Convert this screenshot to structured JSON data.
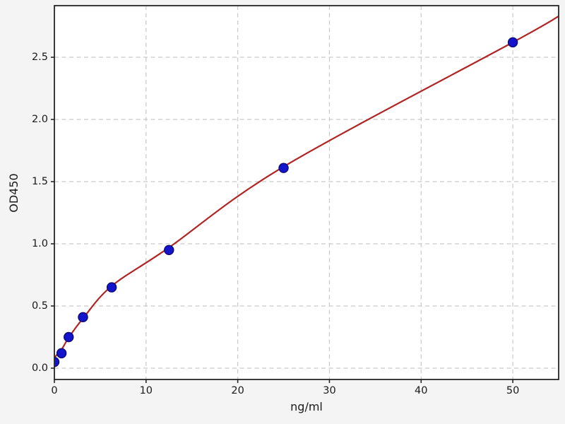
{
  "chart_data": {
    "type": "scatter",
    "title": "",
    "xlabel": "ng/ml",
    "ylabel": "OD450",
    "xlim": [
      0,
      55
    ],
    "ylim": [
      -0.091,
      2.915
    ],
    "x_ticks": [
      0,
      10,
      20,
      30,
      40,
      50
    ],
    "y_ticks": [
      0.0,
      0.5,
      1.0,
      1.5,
      2.0,
      2.5
    ],
    "grid": true,
    "legend": null,
    "series": [
      {
        "name": "standard-points",
        "kind": "scatter",
        "x": [
          0,
          0.78,
          1.56,
          3.12,
          6.25,
          12.5,
          25,
          50
        ],
        "y": [
          0.05,
          0.12,
          0.25,
          0.41,
          0.65,
          0.95,
          1.61,
          2.62
        ],
        "marker_color": "#1414cc",
        "marker_edge_color": "#0a0a78",
        "marker_radius": 6.5
      },
      {
        "name": "fit-curve",
        "kind": "line",
        "x": [
          0,
          0.78,
          1.56,
          3.12,
          6.25,
          12.5,
          25,
          50,
          55
        ],
        "y": [
          0.085,
          0.15,
          0.245,
          0.4,
          0.66,
          0.97,
          1.62,
          2.62,
          2.83
        ],
        "color": "#b22525",
        "width": 2.2
      }
    ],
    "colors": {
      "figure_background": "#f4f4f4",
      "plot_background": "#ffffff",
      "grid": "#c9c9c9",
      "spine": "#262626",
      "text": "#1a1a1a"
    }
  }
}
